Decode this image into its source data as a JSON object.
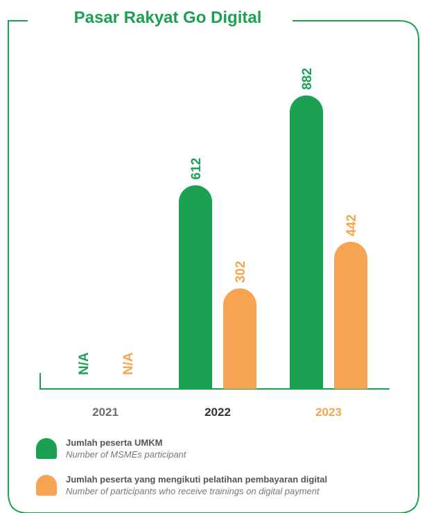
{
  "title": "Pasar Rakyat Go Digital",
  "colors": {
    "green": "#1aa252",
    "orange": "#f6a452",
    "axis": "#1aa252",
    "frame": "#1aa252"
  },
  "chart_data": {
    "type": "bar",
    "title": "Pasar Rakyat Go Digital",
    "categories": [
      "2021",
      "2022",
      "2023"
    ],
    "category_colors": [
      "#6d6d6d",
      "#333333",
      "#f6a452"
    ],
    "ylim": [
      0,
      1000
    ],
    "grid": false,
    "legend_position": "bottom",
    "series": [
      {
        "name": "Jumlah peserta UMKM",
        "name_en": "Number of MSMEs participant",
        "color": "#1aa252",
        "values": [
          null,
          612,
          882
        ],
        "labels": [
          "N/A",
          "612",
          "882"
        ]
      },
      {
        "name": "Jumlah peserta yang mengikuti pelatihan pembayaran digital",
        "name_en": "Number of participants who receive trainings on digital payment",
        "color": "#f6a452",
        "values": [
          null,
          302,
          442
        ],
        "labels": [
          "N/A",
          "302",
          "442"
        ]
      }
    ]
  }
}
